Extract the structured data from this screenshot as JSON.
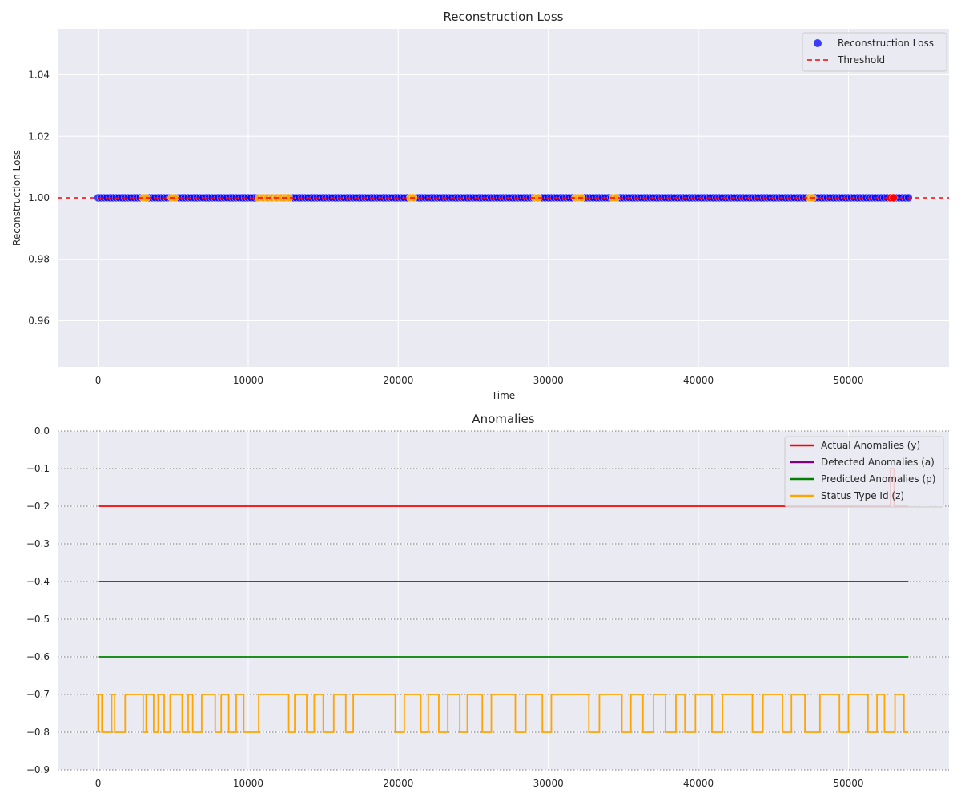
{
  "chart_data": [
    {
      "type": "scatter",
      "title": "Reconstruction Loss",
      "xlabel": "Time",
      "ylabel": "Reconstruction Loss",
      "xlim": [
        -2700,
        56700
      ],
      "ylim": [
        0.945,
        1.055
      ],
      "x_ticks": [
        0,
        10000,
        20000,
        30000,
        40000,
        50000
      ],
      "y_ticks": [
        0.96,
        0.98,
        1.0,
        1.02,
        1.04
      ],
      "y_tick_labels": [
        "0.96",
        "0.98",
        "1.00",
        "1.02",
        "1.04"
      ],
      "grid": true,
      "legend_position": "top-right",
      "series": [
        {
          "name": "Reconstruction Loss",
          "kind": "points",
          "color": "#0000ff",
          "y": 1.0,
          "x_start": 0,
          "x_end": 54000
        },
        {
          "name": "Threshold",
          "kind": "hline",
          "color": "#ff0000",
          "style": "dashed",
          "y": 1.0
        }
      ],
      "highlight_points": {
        "orange": {
          "color": "#ffa500",
          "y": 1.0,
          "x": [
            3000,
            3200,
            4900,
            5100,
            10700,
            11000,
            11300,
            11600,
            11900,
            12200,
            12500,
            12700,
            20800,
            21000,
            29100,
            29300,
            31800,
            32000,
            32200,
            34300,
            34500,
            47400,
            47600
          ]
        },
        "red": {
          "color": "#ff0000",
          "y": 1.0,
          "x": [
            52800,
            53000
          ]
        }
      }
    },
    {
      "type": "line",
      "title": "Anomalies",
      "xlabel": "",
      "ylabel": "",
      "xlim": [
        -2700,
        56700
      ],
      "ylim": [
        -0.9,
        0.0
      ],
      "x_ticks": [
        0,
        10000,
        20000,
        30000,
        40000,
        50000
      ],
      "y_ticks": [
        0.0,
        -0.1,
        -0.2,
        -0.3,
        -0.4,
        -0.5,
        -0.6,
        -0.7,
        -0.8,
        -0.9
      ],
      "y_tick_labels": [
        "0.0",
        "−0.1",
        "−0.2",
        "−0.3",
        "−0.4",
        "−0.5",
        "−0.6",
        "−0.7",
        "−0.8",
        "−0.9"
      ],
      "grid": true,
      "legend_position": "top-right",
      "series": [
        {
          "name": "Actual Anomalies (y)",
          "color": "#ff0000",
          "base": -0.2,
          "high": -0.1,
          "high_intervals": [
            [
              52800,
              53050
            ]
          ]
        },
        {
          "name": "Detected Anomalies (a)",
          "color": "#800080",
          "base": -0.4,
          "high": -0.3,
          "high_intervals": []
        },
        {
          "name": "Predicted Anomalies (p)",
          "color": "#008000",
          "base": -0.6,
          "high": -0.5,
          "high_intervals": []
        },
        {
          "name": "Status Type Id (z)",
          "color": "#ffa500",
          "base": -0.8,
          "high": -0.7,
          "high_intervals": [
            [
              0,
              250
            ],
            [
              900,
              1100
            ],
            [
              1800,
              3000
            ],
            [
              3200,
              3700
            ],
            [
              4000,
              4400
            ],
            [
              4800,
              5600
            ],
            [
              6000,
              6300
            ],
            [
              6900,
              7800
            ],
            [
              8200,
              8700
            ],
            [
              9200,
              9700
            ],
            [
              10700,
              12700
            ],
            [
              13100,
              13900
            ],
            [
              14400,
              15000
            ],
            [
              15700,
              16500
            ],
            [
              17000,
              19800
            ],
            [
              20400,
              21500
            ],
            [
              22000,
              22700
            ],
            [
              23300,
              24100
            ],
            [
              24600,
              25600
            ],
            [
              26200,
              27800
            ],
            [
              28500,
              29600
            ],
            [
              30200,
              32700
            ],
            [
              33400,
              34900
            ],
            [
              35500,
              36300
            ],
            [
              37000,
              37800
            ],
            [
              38500,
              39100
            ],
            [
              39800,
              40900
            ],
            [
              41600,
              43600
            ],
            [
              44300,
              45600
            ],
            [
              46200,
              47100
            ],
            [
              48100,
              49400
            ],
            [
              50000,
              51300
            ],
            [
              51900,
              52400
            ],
            [
              53100,
              53700
            ]
          ]
        }
      ]
    }
  ]
}
